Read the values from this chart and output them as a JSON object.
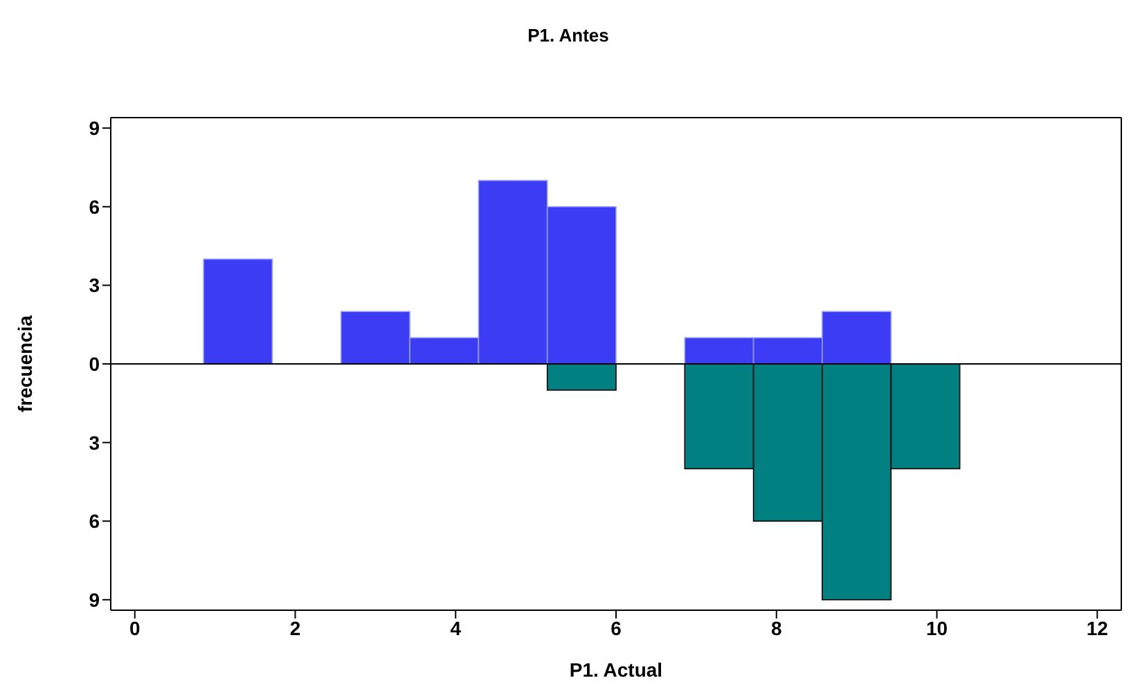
{
  "chart_data": {
    "type": "histogram",
    "title": "P1. Antes",
    "xlabel": "P1. Actual",
    "ylabel": "frecuencia",
    "bins": [
      0.857,
      1.714,
      2.571,
      3.429,
      4.286,
      5.143,
      6.0,
      6.857,
      7.714,
      8.571,
      9.429,
      10.286
    ],
    "series": [
      {
        "color": "#3c3cf5",
        "values": [
          4,
          0,
          2,
          1,
          7,
          6,
          0,
          1,
          1,
          2,
          0
        ]
      },
      {
        "color": "#008080",
        "values": [
          0,
          0,
          0,
          0,
          0,
          -1,
          0,
          -4,
          -6,
          -9,
          -4
        ]
      }
    ],
    "xlim": [
      -0.3,
      12.3
    ],
    "xticks": [
      0,
      2,
      4,
      6,
      8,
      10,
      12
    ],
    "ylim": [
      -9.4,
      9.4
    ],
    "yticks": [
      {
        "value": -9,
        "label": "9"
      },
      {
        "value": -6,
        "label": "6"
      },
      {
        "value": -3,
        "label": "3"
      },
      0,
      3,
      6,
      9
    ],
    "ref_lines": [
      {
        "axis": "y",
        "value": 0,
        "color": "#000000"
      }
    ],
    "grid": false,
    "legend": false
  }
}
